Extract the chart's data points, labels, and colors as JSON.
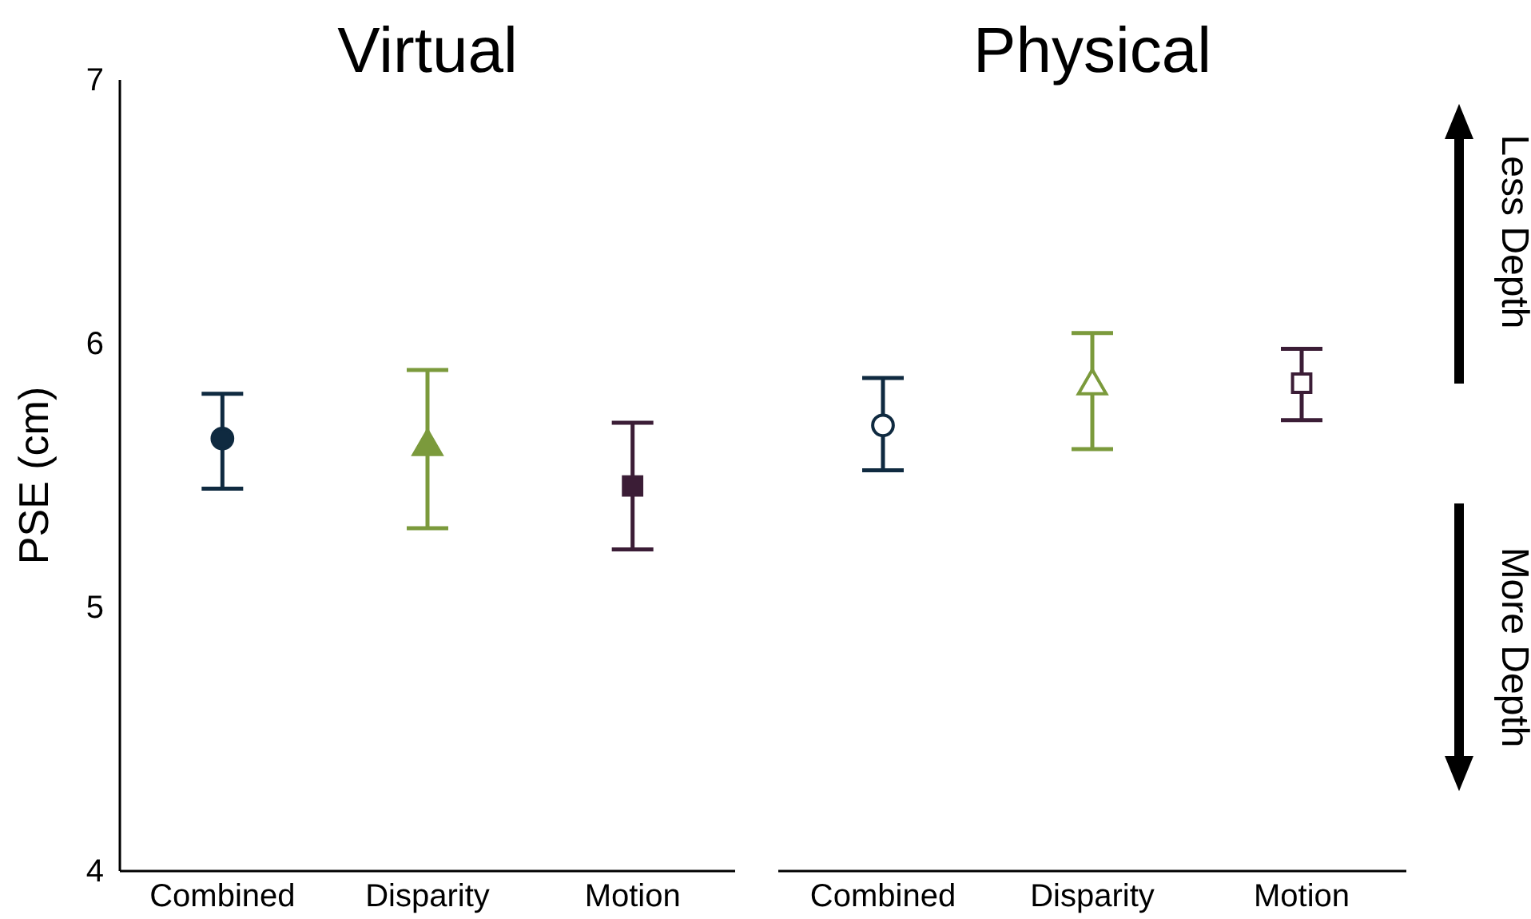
{
  "chart_data": [
    {
      "type": "scatter",
      "title": "Virtual",
      "ylabel": "PSE (cm)",
      "categories": [
        "Combined",
        "Disparity",
        "Motion"
      ],
      "ylim": [
        4,
        7
      ],
      "yticks": [
        4,
        5,
        6,
        7
      ],
      "series": [
        {
          "color": "#0f2a40",
          "marker": "circle",
          "values": [
            5.64,
            null,
            null
          ],
          "errors": [
            [
              5.45,
              5.81
            ],
            null,
            null
          ]
        },
        {
          "color": "#7b9a3c",
          "marker": "triangle",
          "values": [
            null,
            5.61,
            null
          ],
          "errors": [
            null,
            [
              5.3,
              5.9
            ],
            null
          ]
        },
        {
          "color": "#3b1d36",
          "marker": "square",
          "values": [
            null,
            null,
            5.46
          ],
          "errors": [
            null,
            null,
            [
              5.22,
              5.7
            ]
          ]
        }
      ]
    },
    {
      "type": "scatter",
      "title": "Physical",
      "categories": [
        "Combined",
        "Disparity",
        "Motion"
      ],
      "ylim": [
        4,
        7
      ],
      "tick_labels": "x",
      "annotations": [
        "Less Depth",
        "More Depth"
      ],
      "series": [
        {
          "color": "#0f2a40",
          "marker": "circle",
          "values": [
            5.69,
            null,
            null
          ],
          "errors": [
            [
              5.52,
              5.87
            ],
            null,
            null
          ]
        },
        {
          "color": "#7b9a3c",
          "marker": "triangle",
          "values": [
            null,
            5.84,
            null
          ],
          "errors": [
            null,
            [
              5.6,
              6.04
            ],
            null
          ]
        },
        {
          "color": "#3b1d36",
          "marker": "square",
          "values": [
            null,
            null,
            5.85
          ],
          "errors": [
            null,
            null,
            [
              5.71,
              5.98
            ]
          ]
        }
      ]
    }
  ]
}
